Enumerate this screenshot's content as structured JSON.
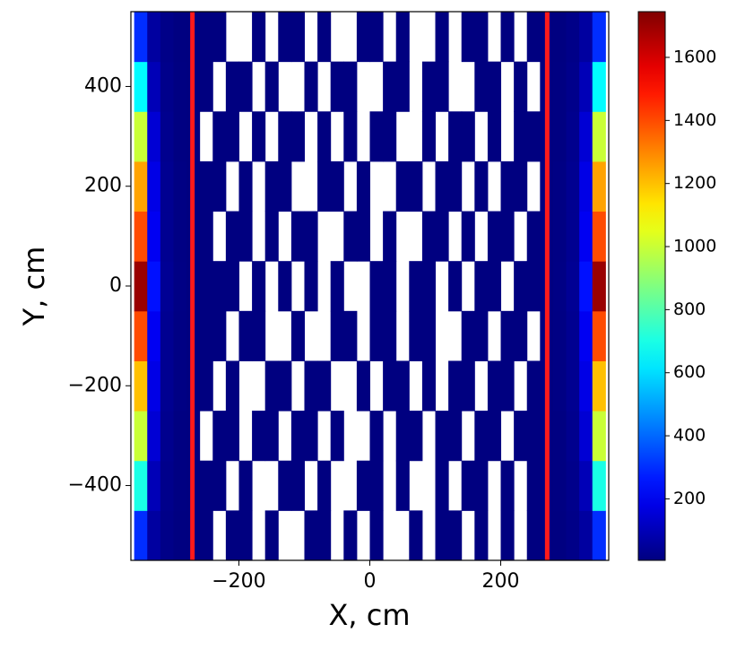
{
  "chart_data": {
    "type": "heatmap",
    "x_label": "X, cm",
    "y_label": "Y, cm",
    "xlim": [
      -365,
      365
    ],
    "ylim": [
      -550,
      550
    ],
    "xticks": [
      {
        "value": -200,
        "label": "−200"
      },
      0,
      200
    ],
    "yticks": [
      {
        "value": -400,
        "label": "−400"
      },
      {
        "value": -200,
        "label": "−200"
      },
      0,
      200,
      400
    ],
    "xbins": [
      -360,
      -340,
      -320,
      -300,
      -280,
      -260,
      -240,
      -220,
      -200,
      -180,
      -160,
      -140,
      -120,
      -100,
      -80,
      -60,
      -40,
      -20,
      0,
      20,
      40,
      60,
      80,
      100,
      120,
      140,
      160,
      180,
      200,
      220,
      240,
      260,
      280,
      300,
      320,
      340,
      360
    ],
    "ybins": [
      -550,
      -450,
      -350,
      -250,
      -150,
      -50,
      50,
      150,
      250,
      350,
      450,
      550
    ],
    "values": [
      [
        300,
        60,
        20,
        8,
        3,
        1,
        null,
        1,
        1,
        null,
        1,
        null,
        null,
        1,
        1,
        null,
        1,
        null,
        1,
        null,
        null,
        1,
        null,
        1,
        1,
        null,
        1,
        null,
        1,
        null,
        1,
        4,
        8,
        20,
        60,
        300
      ],
      [
        700,
        100,
        25,
        10,
        4,
        1,
        1,
        null,
        1,
        null,
        null,
        1,
        1,
        null,
        1,
        null,
        null,
        1,
        1,
        null,
        1,
        null,
        null,
        1,
        null,
        1,
        1,
        null,
        1,
        null,
        1,
        4,
        10,
        25,
        100,
        700
      ],
      [
        1000,
        150,
        30,
        10,
        4,
        null,
        1,
        1,
        null,
        1,
        1,
        null,
        1,
        1,
        null,
        1,
        null,
        null,
        1,
        null,
        1,
        1,
        null,
        1,
        1,
        null,
        1,
        1,
        null,
        1,
        1,
        4,
        10,
        30,
        150,
        1000
      ],
      [
        1200,
        180,
        35,
        12,
        5,
        1,
        null,
        1,
        null,
        null,
        1,
        1,
        null,
        1,
        1,
        null,
        null,
        1,
        null,
        1,
        1,
        null,
        1,
        null,
        1,
        1,
        null,
        1,
        1,
        null,
        1,
        5,
        12,
        35,
        180,
        1200
      ],
      [
        1400,
        200,
        35,
        12,
        5,
        1,
        1,
        null,
        1,
        1,
        null,
        null,
        1,
        null,
        null,
        1,
        1,
        null,
        1,
        1,
        null,
        1,
        1,
        null,
        null,
        1,
        1,
        null,
        1,
        1,
        null,
        5,
        12,
        35,
        200,
        1400
      ],
      [
        1700,
        250,
        40,
        14,
        6,
        2,
        1,
        1,
        null,
        1,
        null,
        1,
        null,
        1,
        null,
        1,
        null,
        null,
        1,
        1,
        null,
        1,
        1,
        null,
        1,
        null,
        1,
        1,
        null,
        1,
        2,
        6,
        14,
        40,
        250,
        1700
      ],
      [
        1400,
        200,
        35,
        12,
        5,
        1,
        null,
        1,
        1,
        null,
        1,
        null,
        1,
        1,
        null,
        null,
        1,
        1,
        null,
        1,
        null,
        null,
        1,
        1,
        null,
        1,
        null,
        1,
        1,
        null,
        1,
        5,
        12,
        35,
        200,
        1400
      ],
      [
        1250,
        180,
        35,
        12,
        5,
        1,
        1,
        null,
        1,
        null,
        1,
        1,
        null,
        null,
        1,
        1,
        null,
        1,
        null,
        null,
        1,
        1,
        null,
        1,
        1,
        null,
        1,
        null,
        1,
        1,
        null,
        5,
        12,
        35,
        180,
        1250
      ],
      [
        1000,
        150,
        30,
        10,
        4,
        null,
        1,
        1,
        null,
        1,
        null,
        1,
        1,
        null,
        1,
        null,
        1,
        null,
        1,
        1,
        null,
        null,
        1,
        null,
        1,
        1,
        null,
        1,
        null,
        1,
        1,
        4,
        10,
        30,
        150,
        1000
      ],
      [
        650,
        100,
        25,
        10,
        4,
        1,
        null,
        1,
        1,
        null,
        1,
        null,
        null,
        1,
        null,
        1,
        1,
        null,
        null,
        1,
        1,
        null,
        1,
        1,
        null,
        null,
        1,
        1,
        null,
        1,
        null,
        4,
        10,
        25,
        100,
        650
      ],
      [
        300,
        60,
        20,
        8,
        3,
        1,
        1,
        null,
        null,
        1,
        null,
        1,
        1,
        null,
        1,
        null,
        null,
        1,
        1,
        null,
        1,
        null,
        null,
        1,
        null,
        1,
        1,
        null,
        1,
        null,
        1,
        3,
        8,
        20,
        60,
        300
      ]
    ],
    "clim": [
      5,
      1745
    ],
    "colorbar_ticks": [
      200,
      400,
      600,
      800,
      1000,
      1200,
      1400,
      1600
    ],
    "vlines": [
      -271,
      271
    ],
    "vline_color": "#ff1a1a"
  }
}
